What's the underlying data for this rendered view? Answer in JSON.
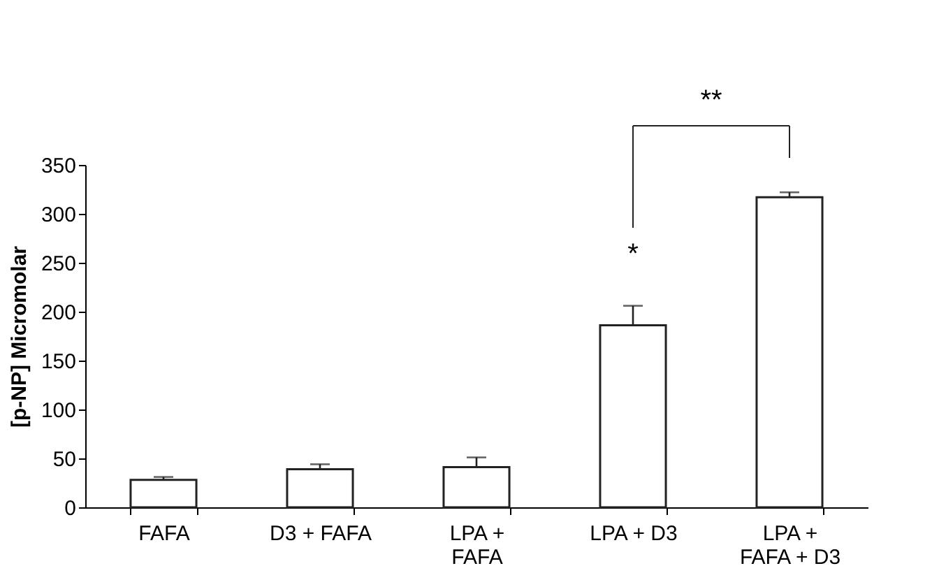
{
  "chart_data": {
    "type": "bar",
    "ylabel": "[p-NP] Micromolar",
    "categories": [
      "FAFA",
      "D3 + FAFA",
      "LPA + FAFA",
      "LPA + D3",
      "LPA + FAFA + D3"
    ],
    "values": [
      28,
      39,
      41,
      186,
      317
    ],
    "errors": [
      [
        28,
        31
      ],
      [
        39,
        44
      ],
      [
        41,
        51
      ],
      [
        186,
        206
      ],
      [
        317,
        322
      ]
    ],
    "color": "#ffffff",
    "ylim": [
      0,
      350
    ],
    "yticks": [
      0,
      50,
      100,
      150,
      200,
      250,
      300,
      350
    ],
    "grid": false,
    "legend": false,
    "annotations": [
      "*",
      "**"
    ]
  }
}
